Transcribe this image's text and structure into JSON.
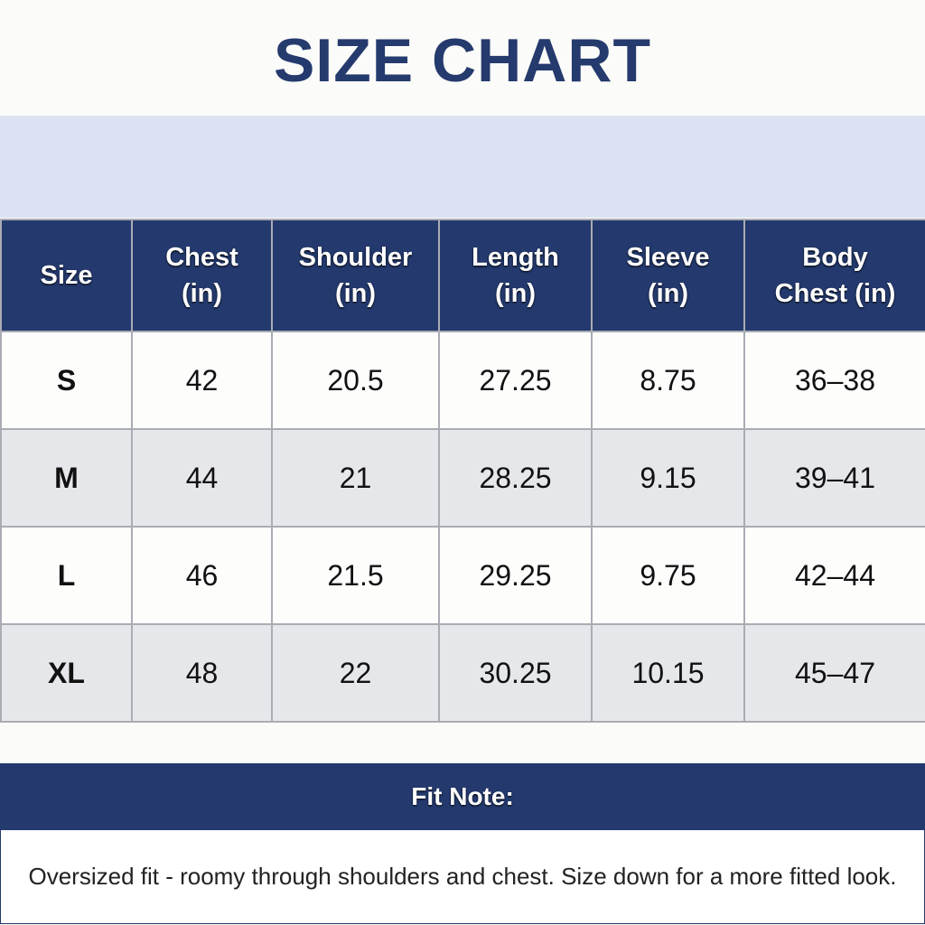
{
  "title": "SIZE CHART",
  "colors": {
    "navy": "#243a6e",
    "band": "#dde2f2",
    "alt_row": "#e6e7ea"
  },
  "table": {
    "headers": [
      [
        "Size",
        ""
      ],
      [
        "Chest",
        "(in)"
      ],
      [
        "Shoulder",
        "(in)"
      ],
      [
        "Length",
        "(in)"
      ],
      [
        "Sleeve",
        "(in)"
      ],
      [
        "Body",
        "Chest (in)"
      ]
    ],
    "rows": [
      [
        "S",
        "42",
        "20.5",
        "27.25",
        "8.75",
        "36–38"
      ],
      [
        "M",
        "44",
        "21",
        "28.25",
        "9.15",
        "39–41"
      ],
      [
        "L",
        "46",
        "21.5",
        "29.25",
        "9.75",
        "42–44"
      ],
      [
        "XL",
        "48",
        "22",
        "30.25",
        "10.15",
        "45–47"
      ]
    ]
  },
  "fit_note": {
    "heading": "Fit Note:",
    "text": "Oversized fit - roomy through shoulders and chest. Size down for a more fitted look."
  }
}
